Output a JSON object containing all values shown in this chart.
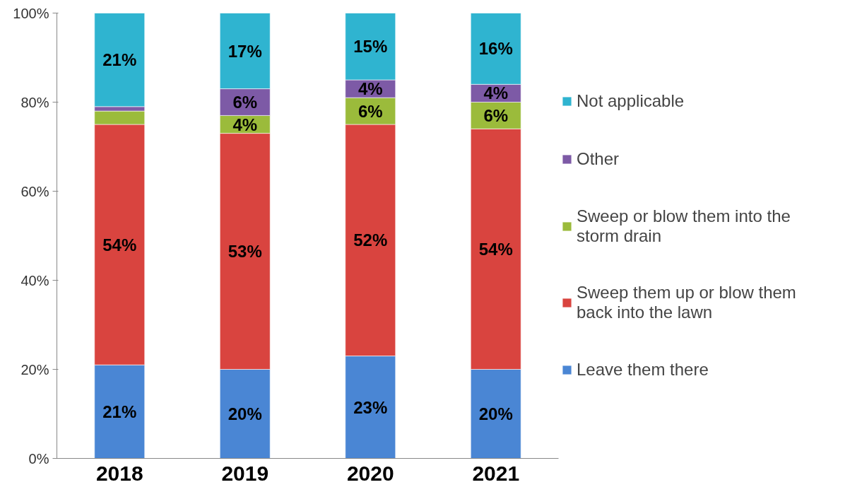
{
  "chart_data": {
    "type": "bar",
    "stacked": true,
    "categories": [
      "2018",
      "2019",
      "2020",
      "2021"
    ],
    "ylim": [
      0,
      100
    ],
    "yticks": [
      {
        "value": 0,
        "label": "0%"
      },
      {
        "value": 20,
        "label": "20%"
      },
      {
        "value": 40,
        "label": "40%"
      },
      {
        "value": 60,
        "label": "60%"
      },
      {
        "value": 80,
        "label": "80%"
      },
      {
        "value": 100,
        "label": "100%"
      }
    ],
    "grid": false,
    "legend": "right",
    "series": [
      {
        "name": "Leave them there",
        "color": "#4a86d4",
        "values": [
          21,
          20,
          23,
          20
        ],
        "value_labels": [
          "21%",
          "20%",
          "23%",
          "20%"
        ]
      },
      {
        "name": "Sweep them up or blow them back into the lawn",
        "color": "#d9443f",
        "values": [
          54,
          53,
          52,
          54
        ],
        "value_labels": [
          "54%",
          "53%",
          "52%",
          "54%"
        ]
      },
      {
        "name": "Sweep or blow them into the storm drain",
        "color": "#9bbb3b",
        "values": [
          3,
          4,
          6,
          6
        ],
        "value_labels": [
          null,
          "4%",
          "6%",
          "6%"
        ]
      },
      {
        "name": "Other",
        "color": "#7d5aa6",
        "values": [
          1,
          6,
          4,
          4
        ],
        "value_labels": [
          null,
          "6%",
          "4%",
          "4%"
        ]
      },
      {
        "name": "Not applicable",
        "color": "#2fb4d0",
        "values": [
          21,
          17,
          15,
          16
        ],
        "value_labels": [
          "21%",
          "17%",
          "15%",
          "16%"
        ]
      }
    ]
  }
}
